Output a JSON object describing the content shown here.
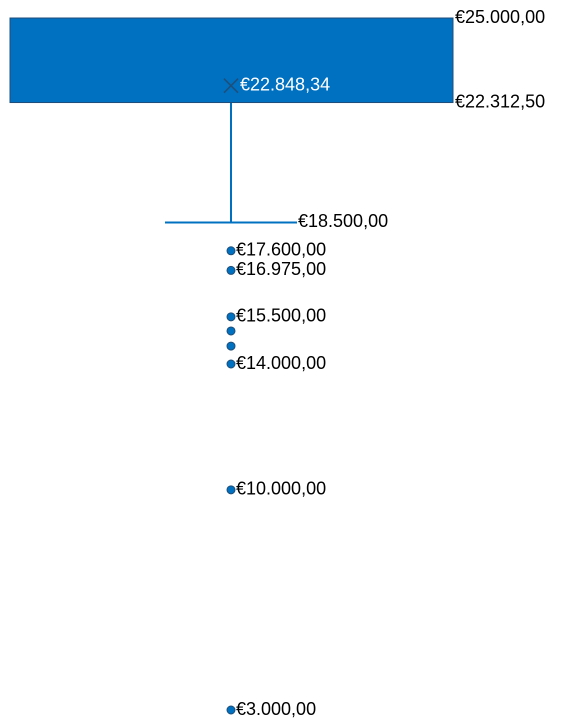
{
  "chart_data": {
    "type": "box",
    "color": "#0070c0",
    "q1": 22312.5,
    "q1_label": "€22.312,50",
    "q3": 25000,
    "q3_label": "€25.000,00",
    "mean": 22848.34,
    "mean_label": "€22.848,34",
    "whisker_low": 18500,
    "whisker_low_label": "€18.500,00",
    "outliers": [
      17600,
      16975,
      15500,
      15050,
      14570,
      14000,
      10000,
      3000
    ],
    "outlier_labels": [
      "€17.600,00",
      "€16.975,00",
      "€15.500,00",
      null,
      null,
      "€14.000,00",
      "€10.000,00",
      "€3.000,00"
    ]
  }
}
